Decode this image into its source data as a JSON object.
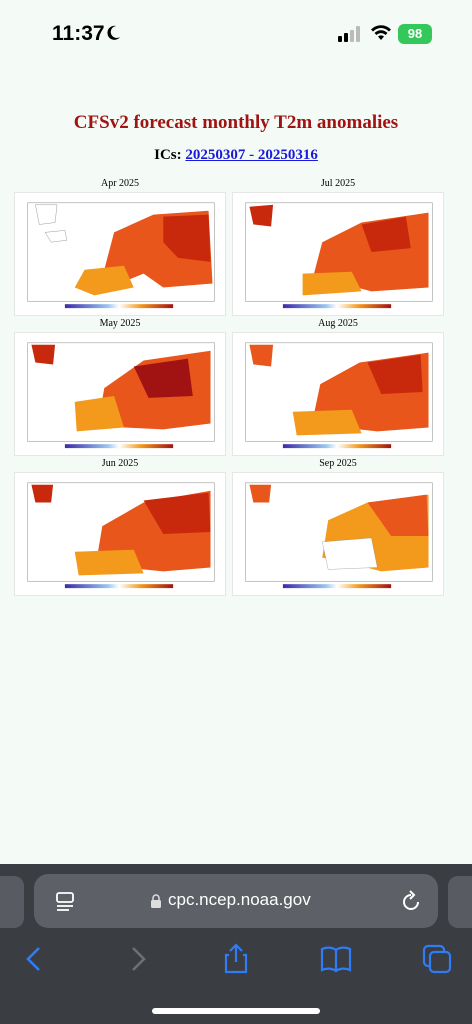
{
  "status": {
    "time": "11:37",
    "battery": "98"
  },
  "page": {
    "title": "CFSv2 forecast monthly T2m anomalies",
    "ics_label": "ICs:",
    "ics_link": "20250307 - 20250316"
  },
  "maps": [
    {
      "month": "Apr 2025"
    },
    {
      "month": "Jul 2025"
    },
    {
      "month": "May 2025"
    },
    {
      "month": "Aug 2025"
    },
    {
      "month": "Jun 2025"
    },
    {
      "month": "Sep 2025"
    }
  ],
  "browser": {
    "url": "cpc.ncep.noaa.gov"
  },
  "colors": {
    "title": "#a11313",
    "link": "#1a1adb",
    "warm_dark": "#c8290c",
    "warm_mid": "#e8561b",
    "warm_light": "#f39a1c"
  }
}
